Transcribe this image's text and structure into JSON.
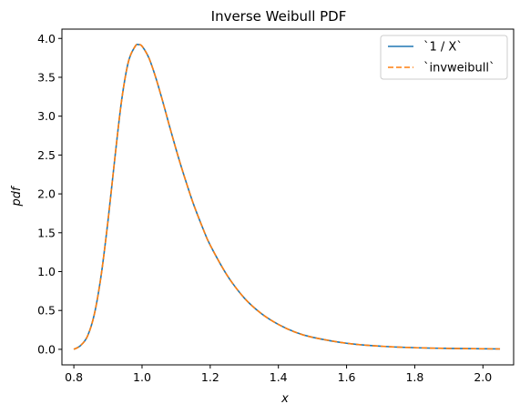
{
  "chart_data": {
    "type": "line",
    "title": "Inverse Weibull PDF",
    "xlabel": "x",
    "ylabel": "pdf",
    "xlim": [
      0.765,
      2.09
    ],
    "ylim": [
      -0.2,
      4.12
    ],
    "xticks": [
      0.8,
      1.0,
      1.2,
      1.4,
      1.6,
      1.8,
      2.0
    ],
    "xtick_labels": [
      "0.8",
      "1.0",
      "1.2",
      "1.4",
      "1.6",
      "1.8",
      "2.0"
    ],
    "yticks": [
      0.0,
      0.5,
      1.0,
      1.5,
      2.0,
      2.5,
      3.0,
      3.5,
      4.0
    ],
    "ytick_labels": [
      "0.0",
      "0.5",
      "1.0",
      "1.5",
      "2.0",
      "2.5",
      "3.0",
      "3.5",
      "4.0"
    ],
    "grid": false,
    "legend_position": "top-right",
    "x": [
      0.8,
      0.82,
      0.84,
      0.86,
      0.88,
      0.9,
      0.92,
      0.94,
      0.96,
      0.98,
      0.99,
      1.0,
      1.02,
      1.04,
      1.06,
      1.08,
      1.1,
      1.12,
      1.15,
      1.18,
      1.2,
      1.25,
      1.3,
      1.35,
      1.4,
      1.45,
      1.5,
      1.6,
      1.7,
      1.8,
      1.9,
      2.0,
      2.05
    ],
    "series": [
      {
        "name": "`1 / X`",
        "color": "#1f77b4",
        "style": "solid",
        "values": [
          0.0,
          0.05,
          0.17,
          0.45,
          0.95,
          1.65,
          2.45,
          3.2,
          3.7,
          3.9,
          3.92,
          3.9,
          3.75,
          3.5,
          3.2,
          2.88,
          2.57,
          2.28,
          1.88,
          1.54,
          1.34,
          0.95,
          0.66,
          0.46,
          0.32,
          0.22,
          0.155,
          0.078,
          0.04,
          0.021,
          0.012,
          0.007,
          0.005
        ]
      },
      {
        "name": "`invweibull`",
        "color": "#ff7f0e",
        "style": "dashed",
        "values": [
          0.0,
          0.05,
          0.17,
          0.45,
          0.95,
          1.65,
          2.45,
          3.2,
          3.7,
          3.9,
          3.92,
          3.9,
          3.75,
          3.5,
          3.2,
          2.88,
          2.57,
          2.28,
          1.88,
          1.54,
          1.34,
          0.95,
          0.66,
          0.46,
          0.32,
          0.22,
          0.155,
          0.078,
          0.04,
          0.021,
          0.012,
          0.007,
          0.005
        ]
      }
    ]
  }
}
